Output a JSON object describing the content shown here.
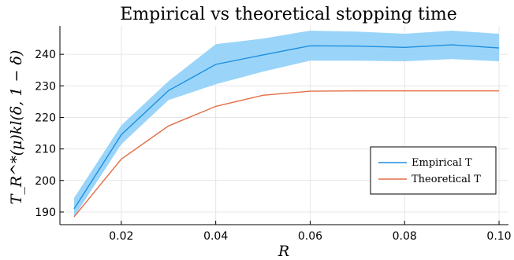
{
  "chart_data": {
    "type": "line",
    "title": "Empirical vs theoretical stopping time",
    "xlabel": "R",
    "ylabel": "T_R^*(μ)kl(δ, 1 − δ)",
    "xlim": [
      0.007,
      0.102
    ],
    "ylim": [
      186,
      249
    ],
    "xticks": [
      0.02,
      0.04,
      0.06,
      0.08,
      0.1
    ],
    "xtick_labels": [
      "0.02",
      "0.04",
      "0.06",
      "0.08",
      "0.10"
    ],
    "yticks": [
      190,
      200,
      210,
      220,
      230,
      240
    ],
    "ytick_labels": [
      "190",
      "200",
      "210",
      "220",
      "230",
      "240"
    ],
    "grid": true,
    "legend_position": "bottom-right",
    "x": [
      0.01,
      0.02,
      0.03,
      0.04,
      0.05,
      0.06,
      0.07,
      0.08,
      0.09,
      0.1
    ],
    "series": [
      {
        "name": "Empirical T",
        "color": "#1f8fdf",
        "values": [
          191.0,
          214.5,
          228.5,
          236.8,
          239.8,
          242.7,
          242.6,
          242.2,
          243.0,
          242.0
        ],
        "band_lower": [
          188.5,
          211.5,
          225.5,
          230.5,
          234.5,
          238.0,
          238.0,
          237.8,
          238.5,
          237.8
        ],
        "band_upper": [
          194.5,
          217.5,
          231.5,
          243.2,
          245.0,
          247.5,
          247.2,
          246.5,
          247.5,
          246.5
        ],
        "band_color": "#8fd0f8"
      },
      {
        "name": "Theoretical T",
        "color": "#e26f46",
        "values": [
          188.5,
          206.8,
          217.3,
          223.5,
          227.0,
          228.3,
          228.4,
          228.4,
          228.4,
          228.4
        ]
      }
    ]
  }
}
